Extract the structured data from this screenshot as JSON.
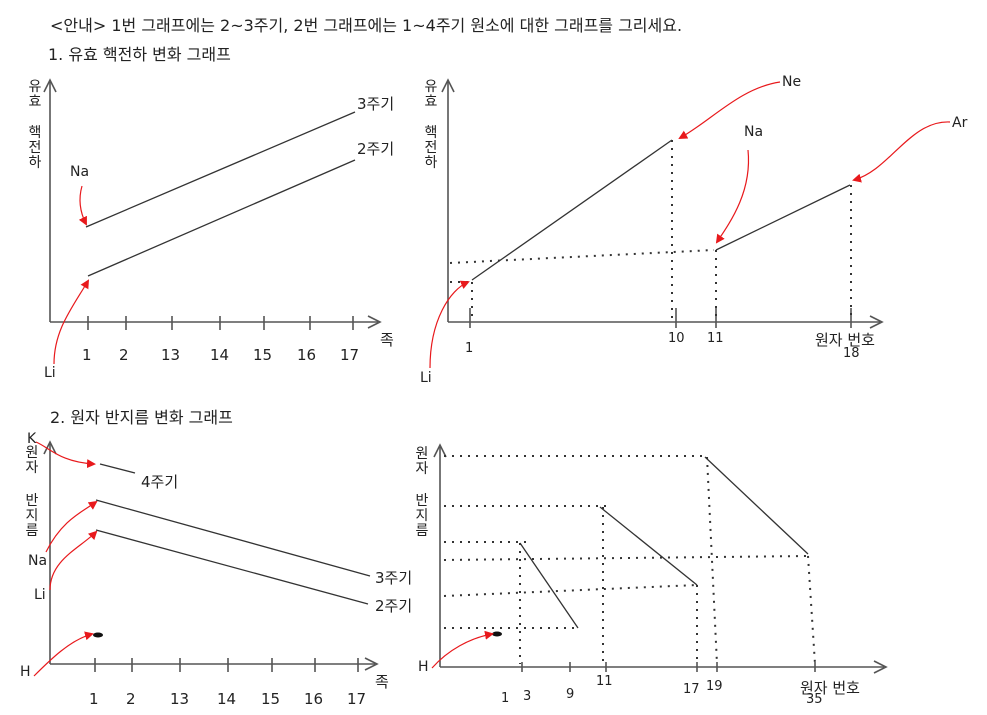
{
  "header": {
    "instruction": "<안내> 1번 그래프에는 2~3주기, 2번 그래프에는 1~4주기 원소에 대한 그래프를 그리세요.",
    "section1": "1.     유효 핵전하 변화 그래프",
    "section2": "2. 원자 반지름 변화 그래프"
  },
  "graph1": {
    "y_axis": [
      "유효",
      "핵전하"
    ],
    "x_axis": "족",
    "x_ticks": [
      "1",
      "2",
      "13",
      "14",
      "15",
      "16",
      "17"
    ],
    "line_labels": [
      "3주기",
      "2주기"
    ],
    "element_labels": [
      "Na",
      "Li"
    ]
  },
  "graph2": {
    "y_axis": [
      "유효",
      "핵전하"
    ],
    "x_axis": "원자 번호",
    "x_ticks": [
      "1",
      "10",
      "11",
      "18"
    ],
    "element_labels": [
      "Ne",
      "Na",
      "Ar",
      "Li"
    ]
  },
  "graph3": {
    "y_axis": [
      "원자",
      "반지름"
    ],
    "x_axis": "족",
    "x_ticks": [
      "1",
      "2",
      "13",
      "14",
      "15",
      "16",
      "17"
    ],
    "line_labels": [
      "4주기",
      "3주기",
      "2주기"
    ],
    "element_labels": [
      "K",
      "Na",
      "Li",
      "H"
    ]
  },
  "graph4": {
    "y_axis": [
      "원자",
      "반지름"
    ],
    "x_axis": "원자 번호",
    "x_ticks": [
      "1",
      "3",
      "9",
      "11",
      "17",
      "19",
      "35"
    ],
    "element_labels": [
      "H"
    ]
  },
  "colors": {
    "arrow": "#e8191c",
    "line": "#333333",
    "axis": "#555555"
  }
}
